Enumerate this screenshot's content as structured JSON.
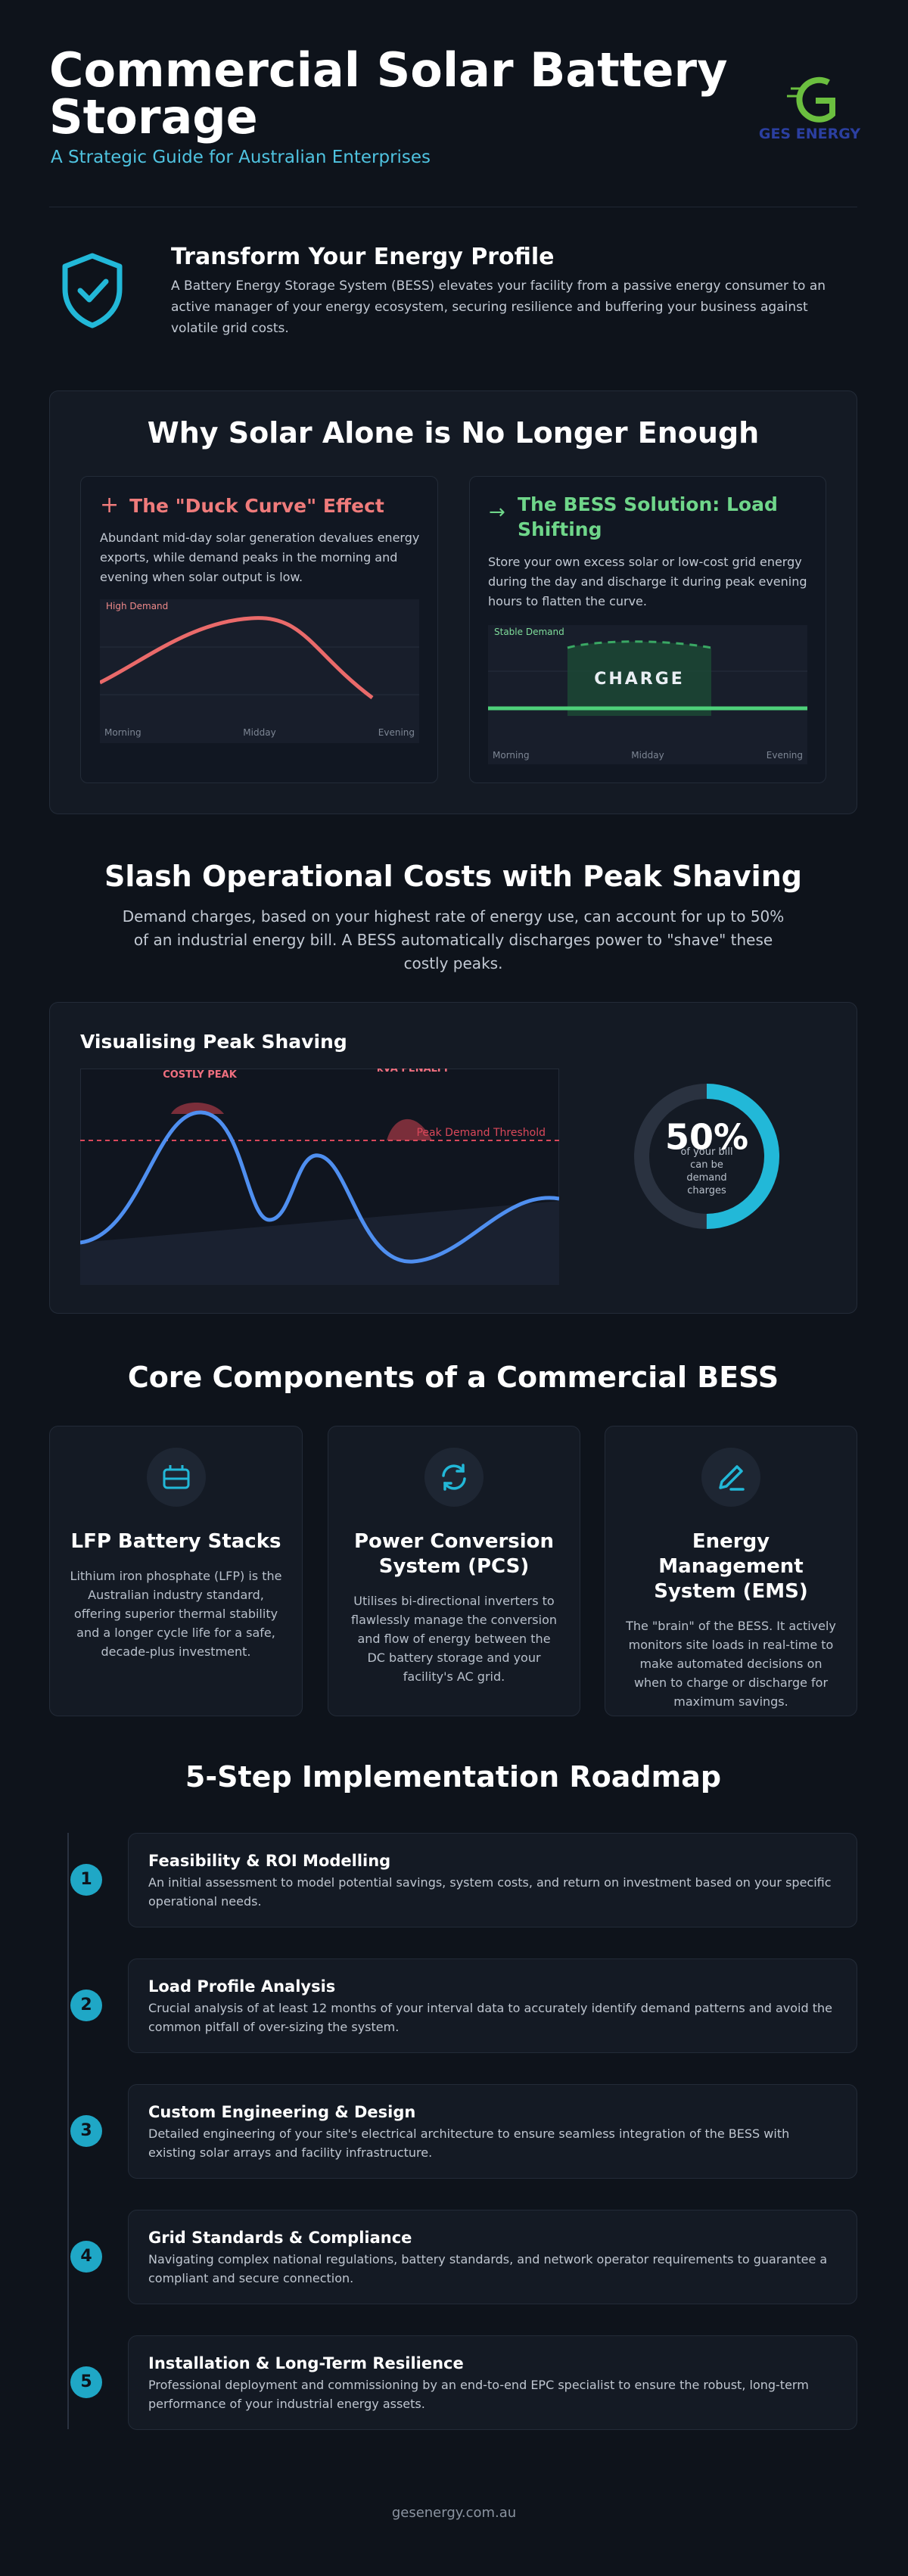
{
  "header": {
    "title": "Commercial Solar Battery Storage",
    "subtitle": "A Strategic Guide for Australian Enterprises",
    "logo": "GES ENERGY"
  },
  "intro": {
    "title": "Transform Your Energy Profile",
    "text": "A Battery Energy Storage System (BESS) elevates your facility from a passive energy consumer to an active manager of your energy ecosystem, securing resilience and buffering your business against volatile grid costs."
  },
  "why": {
    "title": "Why Solar Alone is No Longer Enough",
    "duck": {
      "title": "The \"Duck Curve\" Effect",
      "text": "Abundant mid-day solar generation devalues energy exports, while demand peaks in the morning and evening when solar output is low.",
      "label": "High Demand",
      "axis": [
        "Morning",
        "Midday",
        "Evening"
      ]
    },
    "bess": {
      "title": "The BESS Solution: Load Shifting",
      "text": "Store your own excess solar or low-cost grid energy during the day and discharge it during peak evening hours to flatten the curve.",
      "label": "Stable Demand",
      "charge": "CHARGE",
      "axis": [
        "Morning",
        "Midday",
        "Evening"
      ]
    }
  },
  "peak_shaving": {
    "title": "Slash Operational Costs with Peak Shaving",
    "text": "Demand charges, based on your highest rate of energy use, can account for up to 50% of an industrial energy bill. A BESS automatically discharges power to \"shave\" these costly peaks.",
    "chart_title": "Visualising Peak Shaving",
    "costly_peak": "COSTLY PEAK",
    "penalty": "kVA PENALTY",
    "threshold": "Peak Demand Threshold",
    "stat": {
      "value": 50,
      "label": "50%"
    },
    "stat_text": "of your bill can be demand charges"
  },
  "components": {
    "title": "Core Components of a Commercial BESS",
    "items": [
      {
        "title": "LFP Battery Stacks",
        "text": "Lithium iron phosphate (LFP) is the Australian industry standard, offering superior thermal stability and a longer cycle life for a safe, decade-plus investment."
      },
      {
        "title": "Power Conversion System (PCS)",
        "text": "Utilises bi-directional inverters to flawlessly manage the conversion and flow of energy between the DC battery storage and your facility's AC grid."
      },
      {
        "title": "Energy Management System (EMS)",
        "text": "The \"brain\" of the BESS. It actively monitors site loads in real-time to make automated decisions on when to charge or discharge for maximum savings."
      }
    ]
  },
  "roadmap": {
    "title": "5-Step Implementation Roadmap",
    "steps": [
      {
        "number": "1",
        "title": "Feasibility & ROI Modelling",
        "text": "An initial assessment to model potential savings, system costs, and return on investment based on your specific operational needs."
      },
      {
        "number": "2",
        "title": "Load Profile Analysis",
        "text": "Crucial analysis of at least 12 months of your interval data to accurately identify demand patterns and avoid the common pitfall of over-sizing the system."
      },
      {
        "number": "3",
        "title": "Custom Engineering & Design",
        "text": "Detailed engineering of your site's electrical architecture to ensure seamless integration of the BESS with existing solar arrays and facility infrastructure."
      },
      {
        "number": "4",
        "title": "Grid Standards & Compliance",
        "text": "Navigating complex national regulations, battery standards, and network operator requirements to guarantee a compliant and secure connection."
      },
      {
        "number": "5",
        "title": "Installation & Long-Term Resilience",
        "text": "Professional deployment and commissioning by an end-to-end EPC specialist to ensure the robust, long-term performance of your industrial energy assets."
      }
    ]
  },
  "footer": "gesenergy.com.au"
}
